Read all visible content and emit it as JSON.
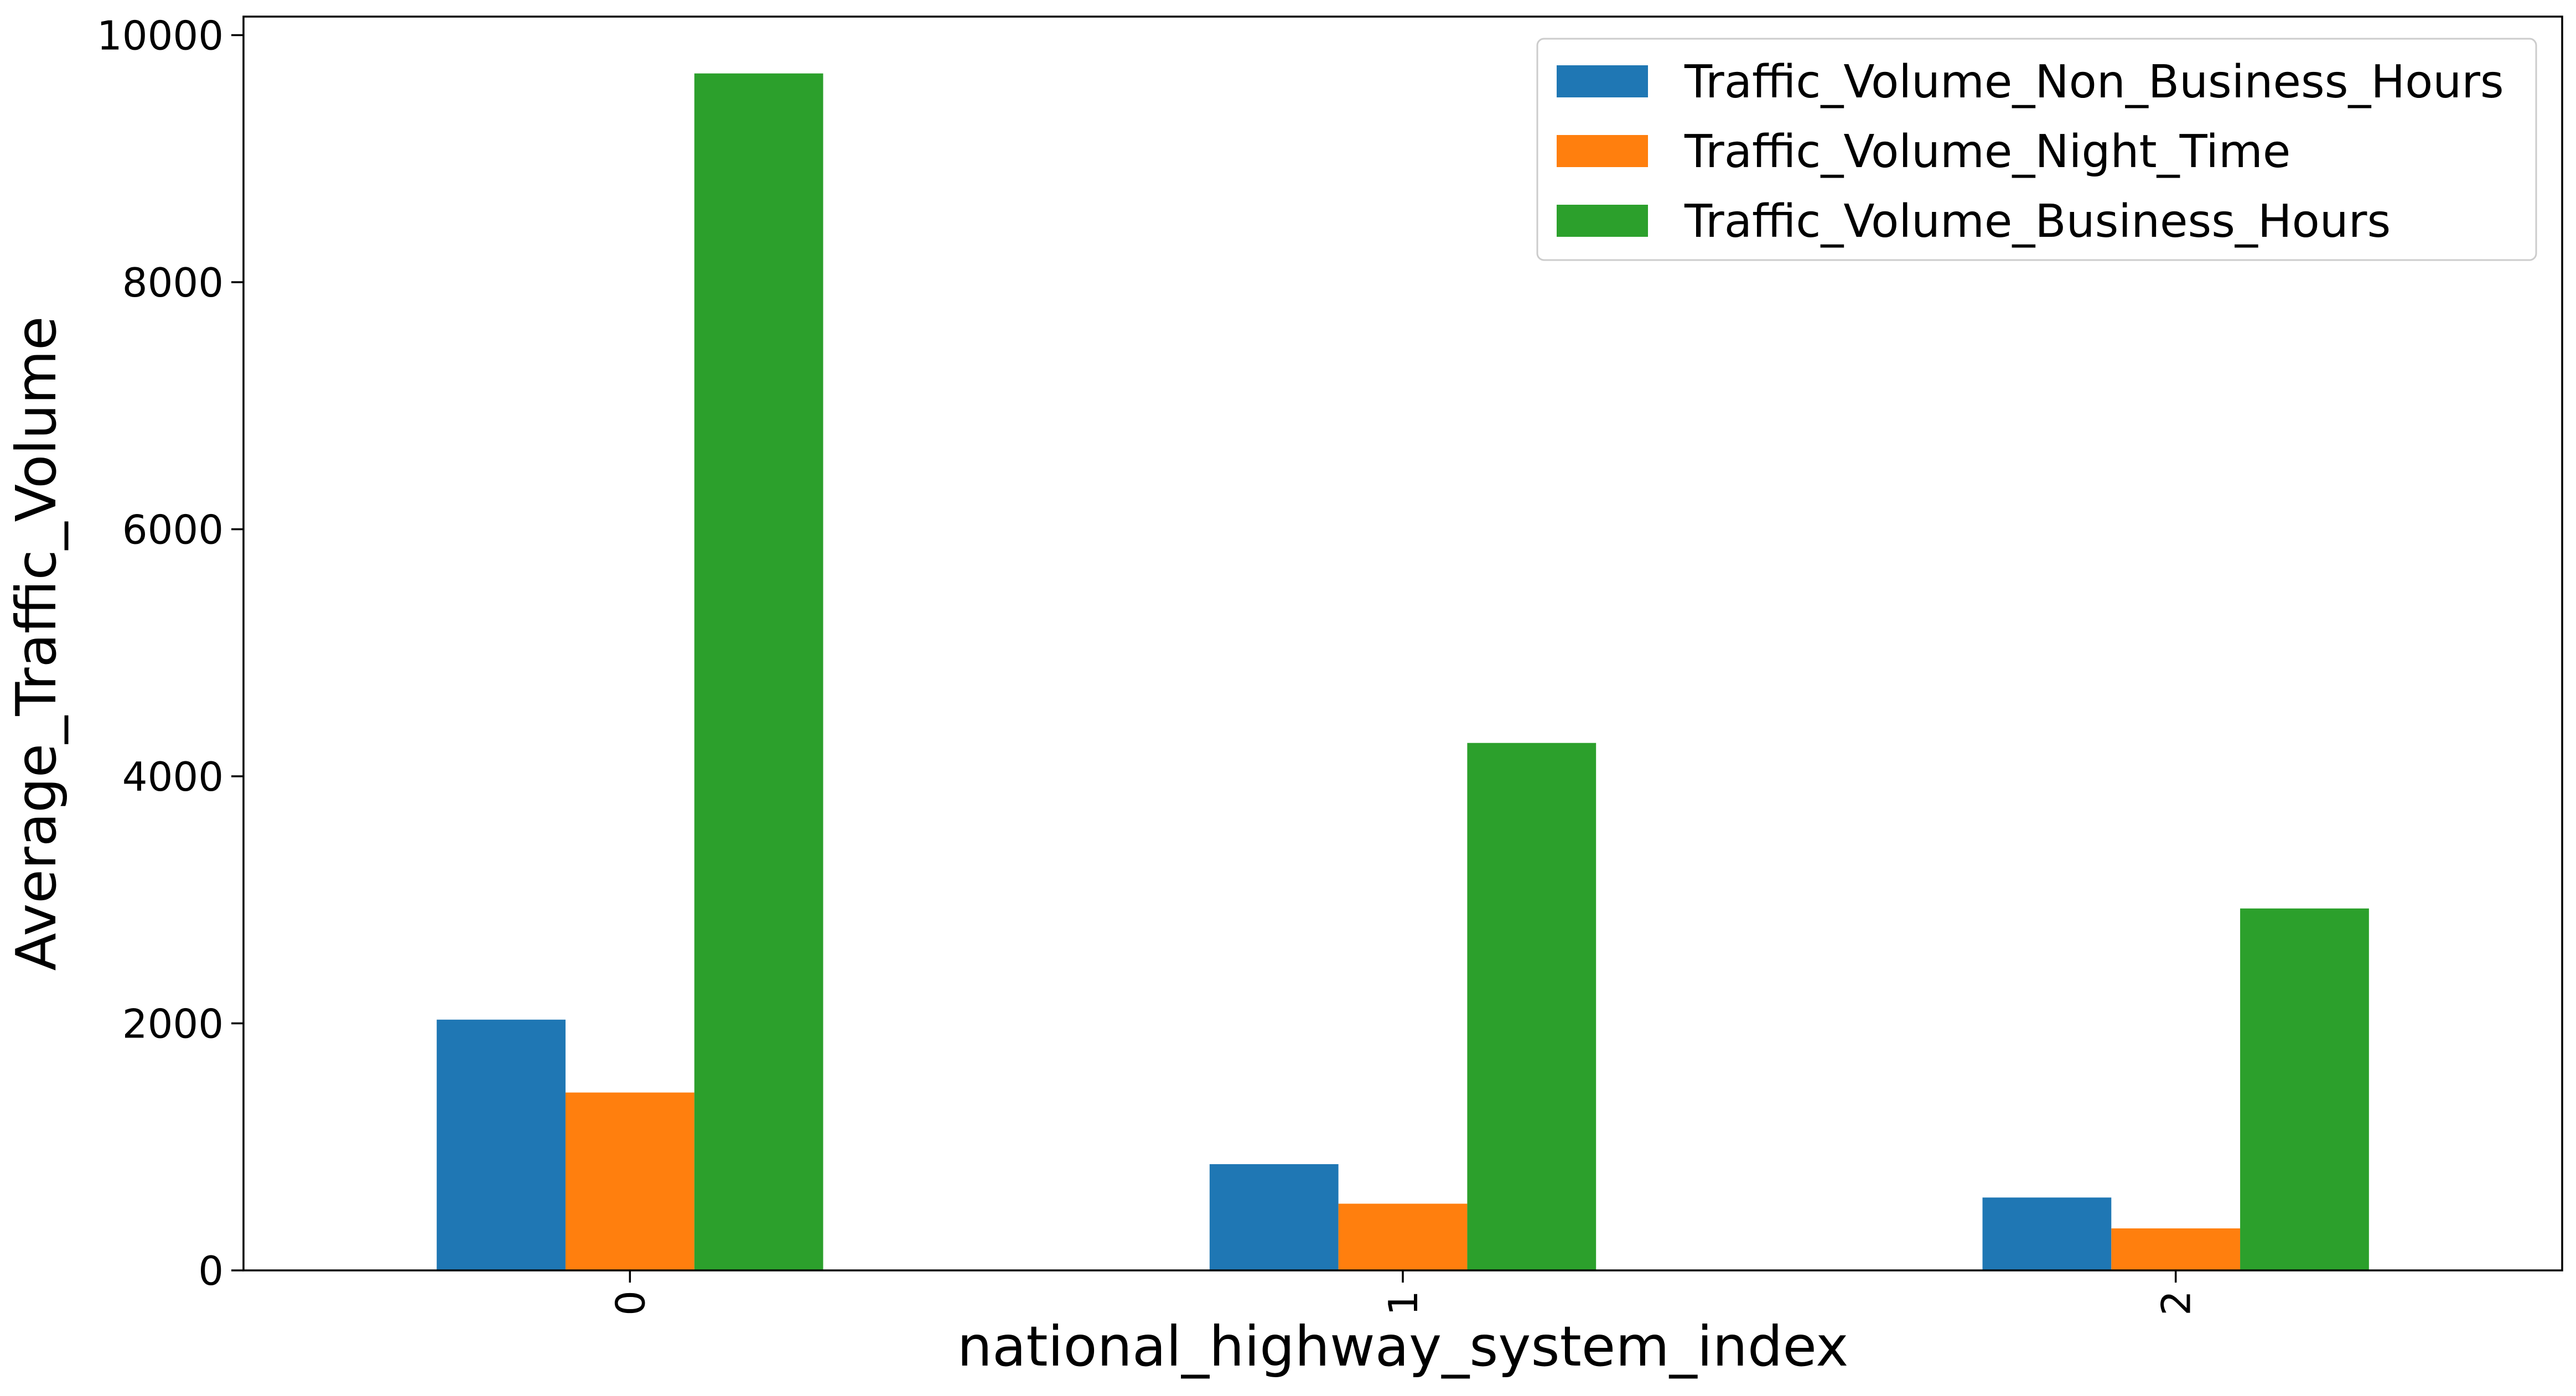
{
  "chart_data": {
    "type": "bar",
    "categories": [
      "0",
      "1",
      "2"
    ],
    "series": [
      {
        "name": "Traffic_Volume_Non_Business_Hours",
        "color": "#1f77b4",
        "values": [
          2030,
          860,
          590
        ]
      },
      {
        "name": "Traffic_Volume_Night_Time",
        "color": "#ff7f0e",
        "values": [
          1440,
          540,
          340
        ]
      },
      {
        "name": "Traffic_Volume_Business_Hours",
        "color": "#2ca02c",
        "values": [
          9690,
          4270,
          2930
        ]
      }
    ],
    "xlabel": "national_highway_system_index",
    "ylabel": "Average_Traffic_Volume",
    "ylim": [
      0,
      10150
    ],
    "yticks": [
      0,
      2000,
      4000,
      6000,
      8000,
      10000
    ],
    "grid": false,
    "legend_position": "top-right"
  }
}
